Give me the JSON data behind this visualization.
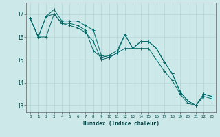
{
  "xlabel": "Humidex (Indice chaleur)",
  "ylabel": "",
  "background_color": "#cce8e8",
  "grid_color": "#b8d8d8",
  "line_color": "#006868",
  "xlim": [
    -0.5,
    23.5
  ],
  "ylim": [
    12.7,
    17.5
  ],
  "yticks": [
    13,
    14,
    15,
    16,
    17
  ],
  "xticks": [
    0,
    1,
    2,
    3,
    4,
    5,
    6,
    7,
    8,
    9,
    10,
    11,
    12,
    13,
    14,
    15,
    16,
    17,
    18,
    19,
    20,
    21,
    22,
    23
  ],
  "series": [
    [
      16.8,
      16.0,
      16.9,
      17.2,
      16.7,
      16.7,
      16.7,
      16.5,
      16.3,
      15.2,
      15.1,
      15.3,
      16.1,
      15.5,
      15.8,
      15.8,
      15.5,
      14.9,
      14.4,
      13.6,
      13.2,
      13.0,
      13.5,
      13.4
    ],
    [
      16.8,
      16.0,
      16.9,
      17.0,
      16.6,
      16.6,
      16.5,
      16.3,
      15.4,
      15.1,
      15.2,
      15.4,
      16.1,
      15.5,
      15.8,
      15.8,
      15.5,
      14.9,
      14.4,
      13.6,
      13.2,
      13.0,
      13.5,
      13.4
    ],
    [
      16.8,
      16.0,
      16.0,
      17.0,
      16.6,
      16.5,
      16.4,
      16.2,
      15.8,
      15.0,
      15.1,
      15.3,
      15.5,
      15.5,
      15.5,
      15.5,
      15.0,
      14.5,
      14.1,
      13.5,
      13.1,
      13.0,
      13.4,
      13.3
    ]
  ]
}
